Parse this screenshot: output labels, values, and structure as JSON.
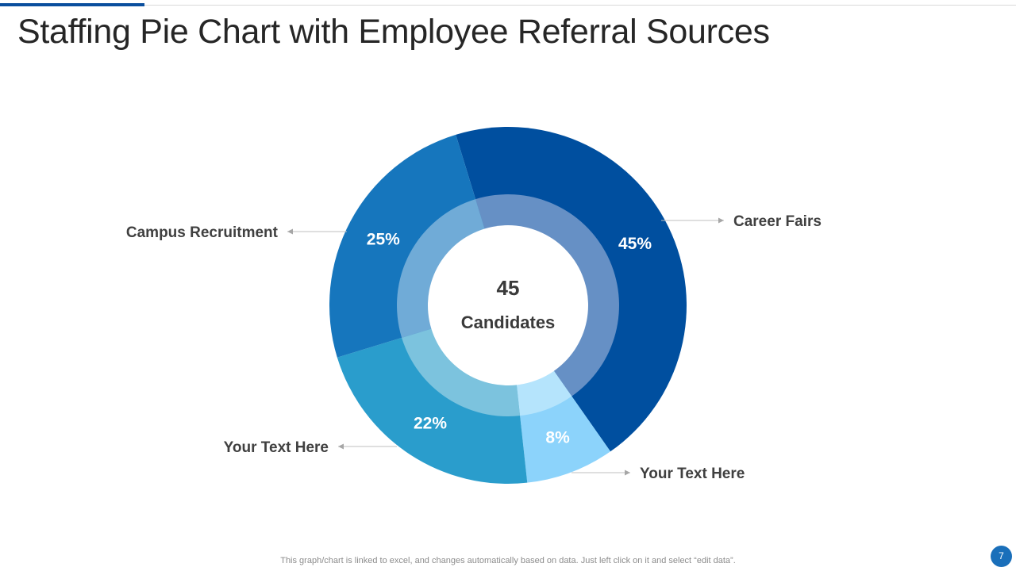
{
  "slide": {
    "title": "Staffing Pie Chart with Employee Referral Sources",
    "footer_note": "This graph/chart is linked to excel,  and changes automatically based on data. Just left click on it and select “edit data”.",
    "page_number": "7"
  },
  "chart_data": {
    "type": "pie",
    "variant": "donut",
    "center_value": "45",
    "center_label": "Candidates",
    "slices": [
      {
        "label": "Career Fairs",
        "value": 45,
        "value_label": "45%",
        "color": "#004f9f",
        "inner_color": "#6690c5"
      },
      {
        "label": "Your Text Here",
        "value": 8,
        "value_label": "8%",
        "color": "#8cd3fb",
        "inner_color": "#b5e4fc"
      },
      {
        "label": "Your Text Here",
        "value": 22,
        "value_label": "22%",
        "color": "#2a9dcc",
        "inner_color": "#7cc3de"
      },
      {
        "label": "Campus Recruitment",
        "value": 25,
        "value_label": "25%",
        "color": "#1676bd",
        "inner_color": "#70abd7"
      }
    ],
    "legend": "callouts"
  }
}
